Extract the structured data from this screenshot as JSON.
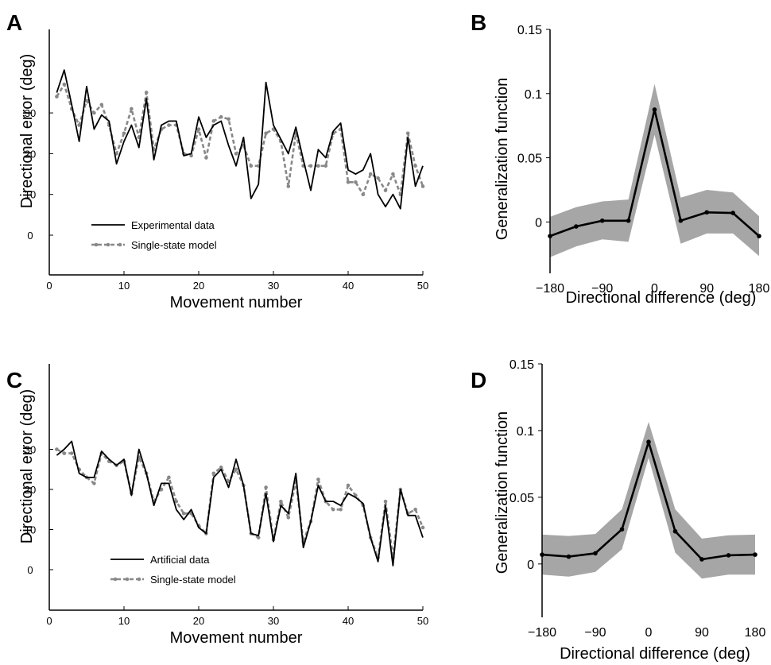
{
  "chart_data": [
    {
      "panel": "A",
      "type": "line",
      "xlabel": "Movement number",
      "ylabel": "Directional error (deg)",
      "xlim": [
        0,
        50
      ],
      "ylim": [
        -10,
        50
      ],
      "xticks": [
        "0",
        "10",
        "20",
        "30",
        "40",
        "50"
      ],
      "yticks": [
        "0",
        "10",
        "20",
        "30"
      ],
      "legend": "bottom-left",
      "x": [
        1,
        2,
        3,
        4,
        5,
        6,
        7,
        8,
        9,
        10,
        11,
        12,
        13,
        14,
        15,
        16,
        17,
        18,
        19,
        20,
        21,
        22,
        23,
        24,
        25,
        26,
        27,
        28,
        29,
        30,
        31,
        32,
        33,
        34,
        35,
        36,
        37,
        38,
        39,
        40,
        41,
        42,
        43,
        44,
        45,
        46,
        47,
        48,
        49,
        50
      ],
      "series": [
        {
          "name": "Experimental data",
          "color": "#000000",
          "style": "solid",
          "values": [
            35,
            40.5,
            32,
            23,
            36.5,
            26,
            29.5,
            28,
            17.5,
            23,
            27,
            21.5,
            33.5,
            18.5,
            27,
            28,
            28,
            19.5,
            20,
            29,
            24,
            27,
            28,
            22,
            17,
            24,
            9,
            12.5,
            37.5,
            27,
            23.5,
            20,
            26.5,
            18.5,
            11,
            21,
            19,
            25.5,
            27.5,
            16,
            15,
            16,
            20,
            10,
            7,
            10,
            6.5,
            24,
            12,
            17
          ]
        },
        {
          "name": "Single-state model",
          "color": "#888888",
          "style": "dashed",
          "values": [
            34,
            37,
            31,
            27,
            33,
            30,
            32,
            27,
            20,
            25,
            31,
            24,
            35,
            21,
            26,
            27,
            27,
            20,
            19.5,
            26,
            19,
            28,
            29,
            28.5,
            20,
            22,
            17,
            17,
            25,
            26,
            23,
            12,
            25,
            17,
            17,
            17,
            17,
            25,
            26,
            13,
            13,
            10,
            15,
            14,
            11,
            15,
            10,
            25,
            17,
            12
          ]
        }
      ]
    },
    {
      "panel": "B",
      "type": "line",
      "xlabel": "Directional difference (deg)",
      "ylabel": "Generalization function",
      "xlim": [
        -180,
        180
      ],
      "ylim": [
        -0.04,
        0.15
      ],
      "xticks": [
        "−180",
        "−90",
        "0",
        "90",
        "180"
      ],
      "yticks": [
        "0",
        "0.05",
        "0.1",
        "0.15"
      ],
      "x": [
        -180,
        -135,
        -90,
        -45,
        0,
        45,
        90,
        135,
        180
      ],
      "values": [
        -0.011,
        -0.0035,
        0.001,
        0.001,
        0.0875,
        0.001,
        0.0075,
        0.007,
        -0.011
      ],
      "band_upper": [
        0.004,
        0.0115,
        0.016,
        0.0175,
        0.1075,
        0.019,
        0.025,
        0.023,
        0.0045
      ],
      "band_lower": [
        -0.0275,
        -0.019,
        -0.0135,
        -0.0155,
        0.068,
        -0.017,
        -0.009,
        -0.009,
        -0.0265
      ]
    },
    {
      "panel": "C",
      "type": "line",
      "xlabel": "Movement number",
      "ylabel": "Directional error (deg)",
      "xlim": [
        0,
        50
      ],
      "ylim": [
        -10,
        50
      ],
      "xticks": [
        "0",
        "10",
        "20",
        "30",
        "40",
        "50"
      ],
      "yticks": [
        "0",
        "10",
        "20",
        "30"
      ],
      "legend": "bottom-left",
      "x": [
        1,
        2,
        3,
        4,
        5,
        6,
        7,
        8,
        9,
        10,
        11,
        12,
        13,
        14,
        15,
        16,
        17,
        18,
        19,
        20,
        21,
        22,
        23,
        24,
        25,
        26,
        27,
        28,
        29,
        30,
        31,
        32,
        33,
        34,
        35,
        36,
        37,
        38,
        39,
        40,
        41,
        42,
        43,
        44,
        45,
        46,
        47,
        48,
        49,
        50
      ],
      "series": [
        {
          "name": "Artificial data",
          "color": "#000000",
          "style": "solid",
          "values": [
            28.5,
            30,
            32,
            24,
            23,
            23,
            29.5,
            27.5,
            26,
            27.5,
            18.5,
            30,
            24,
            16,
            21.5,
            21.5,
            15,
            12.5,
            15,
            10.5,
            9,
            23,
            25,
            20.5,
            27.5,
            21,
            9,
            8.5,
            19,
            7,
            16,
            14,
            24,
            5.5,
            12,
            21,
            17,
            17,
            16,
            19,
            18,
            16.5,
            8,
            2,
            16,
            1,
            20,
            13.5,
            13.5,
            8
          ]
        },
        {
          "name": "Single-state model",
          "color": "#888888",
          "style": "dashed",
          "values": [
            30,
            29,
            29,
            25,
            23,
            21.5,
            29,
            27,
            26,
            27,
            19,
            28,
            24,
            17,
            20,
            23,
            17,
            14,
            14,
            11,
            9,
            24,
            25.5,
            22,
            25,
            21,
            9,
            8,
            20.5,
            7.5,
            17,
            13,
            22,
            7,
            12,
            22.5,
            17,
            15,
            15,
            21,
            18.5,
            16,
            8,
            3,
            17,
            3,
            20,
            14,
            15,
            10.5
          ]
        }
      ]
    },
    {
      "panel": "D",
      "type": "line",
      "xlabel": "Directional difference (deg)",
      "ylabel": "Generalization function",
      "xlim": [
        -180,
        180
      ],
      "ylim": [
        -0.04,
        0.15
      ],
      "xticks": [
        "−180",
        "−90",
        "0",
        "90",
        "180"
      ],
      "yticks": [
        "0",
        "0.05",
        "0.1",
        "0.15"
      ],
      "x": [
        -180,
        -135,
        -90,
        -45,
        0,
        45,
        90,
        135,
        180
      ],
      "values": [
        0.007,
        0.0055,
        0.008,
        0.026,
        0.0915,
        0.0245,
        0.0035,
        0.0065,
        0.007
      ],
      "band_upper": [
        0.022,
        0.021,
        0.0225,
        0.041,
        0.1065,
        0.041,
        0.019,
        0.0215,
        0.022
      ],
      "band_lower": [
        -0.008,
        -0.0095,
        -0.006,
        0.011,
        0.0795,
        0.0085,
        -0.011,
        -0.008,
        -0.008
      ]
    }
  ]
}
